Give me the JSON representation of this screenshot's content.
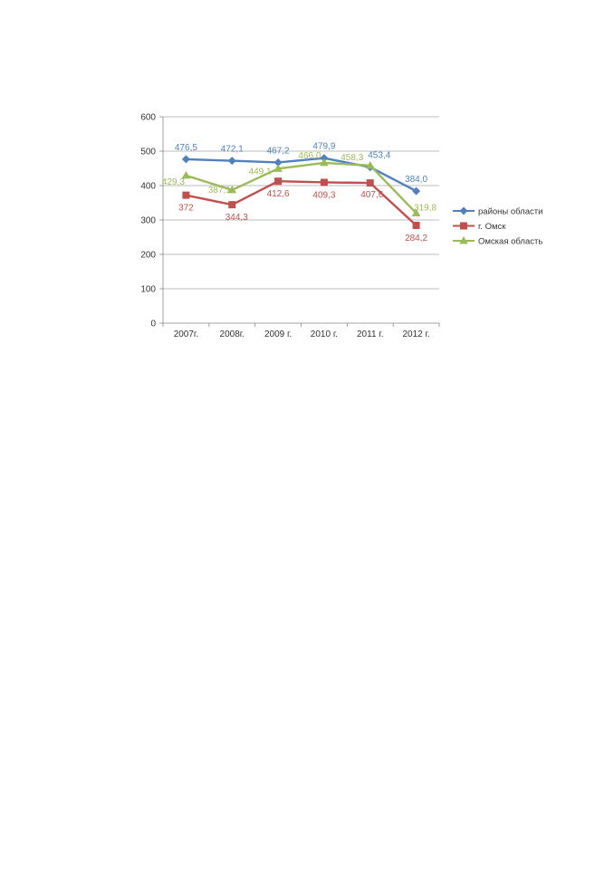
{
  "chart_data": {
    "type": "line",
    "title": "",
    "xlabel": "",
    "ylabel": "",
    "categories": [
      "2007г.",
      "2008г.",
      "2009 г.",
      "2010 г.",
      "2011 г.",
      "2012 г."
    ],
    "ylim": [
      0,
      600
    ],
    "yticks": [
      0,
      100,
      200,
      300,
      400,
      500,
      600
    ],
    "grid": true,
    "legend_position": "right",
    "series": [
      {
        "name": "районы области",
        "color": "#4F81BD",
        "marker": "diamond",
        "values": [
          476.5,
          472.1,
          467.2,
          479.9,
          453.4,
          384.0
        ],
        "labels": [
          "476,5",
          "472,1",
          "467,2",
          "479,9",
          "453,4",
          "384,0"
        ]
      },
      {
        "name": "г. Омск",
        "color": "#C0504D",
        "marker": "square",
        "values": [
          372,
          344.3,
          412.6,
          409.3,
          407.6,
          284.2
        ],
        "labels": [
          "372",
          "344,3",
          "412,6",
          "409,3",
          "407,6",
          "284,2"
        ]
      },
      {
        "name": "Омская область",
        "color": "#9BBB59",
        "marker": "triangle",
        "values": [
          429.3,
          387.1,
          449.1,
          466.0,
          458.3,
          319.8
        ],
        "labels": [
          "429,3",
          "387,1",
          "449,1",
          "466,0",
          "458,3",
          "319,8"
        ]
      }
    ]
  }
}
